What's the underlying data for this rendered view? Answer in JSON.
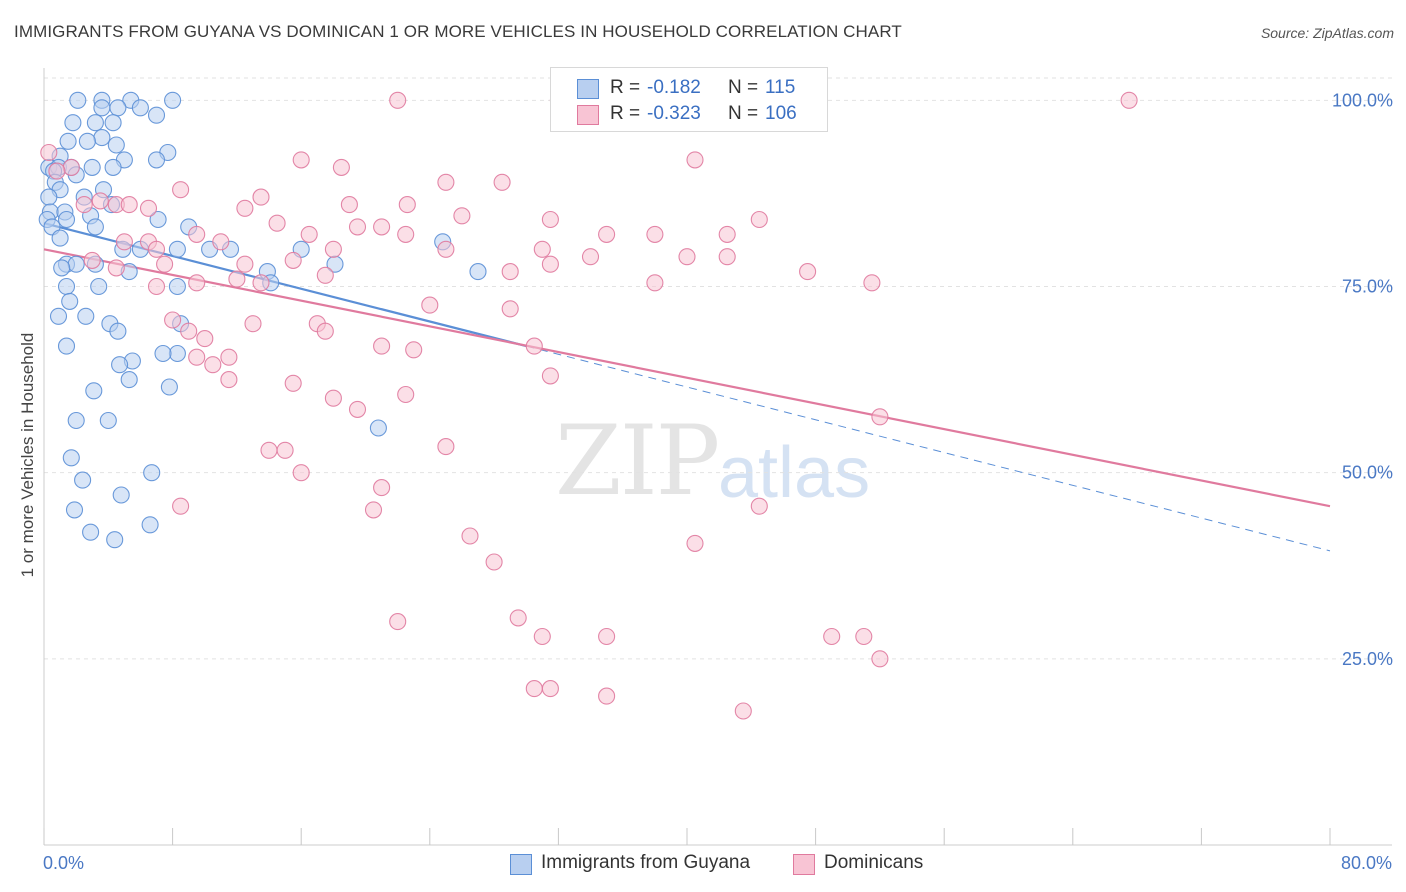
{
  "title": "IMMIGRANTS FROM GUYANA VS DOMINICAN 1 OR MORE VEHICLES IN HOUSEHOLD CORRELATION CHART",
  "source": "Source: ZipAtlas.com",
  "watermark_zip": "ZIP",
  "watermark_atlas": "atlas",
  "legend": {
    "r_label": "R =",
    "n_label": "N =",
    "rows": [
      {
        "r": "-0.182",
        "n": "115",
        "fill": "#b8cff0",
        "stroke": "#5b8fd6"
      },
      {
        "r": "-0.323",
        "n": "106",
        "fill": "#f8c4d4",
        "stroke": "#e07a9e"
      }
    ]
  },
  "chart_data": {
    "type": "scatter",
    "title": "IMMIGRANTS FROM GUYANA VS DOMINICAN 1 OR MORE VEHICLES IN HOUSEHOLD CORRELATION CHART",
    "xlabel": "",
    "ylabel": "1 or more Vehicles in Household",
    "xlim": [
      0,
      80
    ],
    "ylim": [
      0,
      103
    ],
    "x_tick_labels": [
      "0.0%",
      "80.0%"
    ],
    "y_ticks": [
      25,
      50,
      75,
      100
    ],
    "y_tick_labels": [
      "25.0%",
      "50.0%",
      "75.0%",
      "100.0%"
    ],
    "grid": "horizontal dashed",
    "series": [
      {
        "name": "Immigrants from Guyana",
        "color": "#5b8fd6",
        "fill": "#b8cff0",
        "trend": {
          "x": [
            0,
            30
          ],
          "y": [
            83.5,
            67.0
          ]
        },
        "trend_extended": {
          "x": [
            30,
            80
          ],
          "y": [
            67.0,
            39.5
          ]
        },
        "points": [
          [
            2.1,
            100
          ],
          [
            3.6,
            100
          ],
          [
            5.4,
            100
          ],
          [
            8.0,
            100
          ],
          [
            3.6,
            99
          ],
          [
            4.6,
            99
          ],
          [
            6.0,
            99
          ],
          [
            7.0,
            98
          ],
          [
            1.8,
            97
          ],
          [
            3.2,
            97
          ],
          [
            4.3,
            97
          ],
          [
            3.6,
            95
          ],
          [
            1.5,
            94.5
          ],
          [
            2.7,
            94.5
          ],
          [
            4.5,
            94
          ],
          [
            7.7,
            93
          ],
          [
            1.0,
            92.5
          ],
          [
            5.0,
            92
          ],
          [
            7.0,
            92
          ],
          [
            0.3,
            91
          ],
          [
            0.9,
            91
          ],
          [
            1.7,
            91
          ],
          [
            3.0,
            91
          ],
          [
            4.3,
            91
          ],
          [
            0.6,
            90.5
          ],
          [
            2.0,
            90
          ],
          [
            0.7,
            89
          ],
          [
            3.7,
            88
          ],
          [
            1.0,
            88
          ],
          [
            0.3,
            87
          ],
          [
            2.5,
            87
          ],
          [
            4.2,
            86
          ],
          [
            0.4,
            85
          ],
          [
            1.3,
            85
          ],
          [
            0.2,
            84
          ],
          [
            2.9,
            84.5
          ],
          [
            1.4,
            84
          ],
          [
            7.1,
            84
          ],
          [
            0.5,
            83
          ],
          [
            3.2,
            83
          ],
          [
            9.0,
            83
          ],
          [
            1.0,
            81.5
          ],
          [
            4.9,
            80
          ],
          [
            6.0,
            80
          ],
          [
            8.3,
            80
          ],
          [
            10.3,
            80
          ],
          [
            16.0,
            80
          ],
          [
            18.1,
            78
          ],
          [
            1.4,
            78
          ],
          [
            2.0,
            78
          ],
          [
            1.1,
            77.5
          ],
          [
            3.2,
            78
          ],
          [
            5.3,
            77
          ],
          [
            13.9,
            77
          ],
          [
            27.0,
            77
          ],
          [
            1.4,
            75
          ],
          [
            3.4,
            75
          ],
          [
            8.3,
            75
          ],
          [
            14.1,
            75.5
          ],
          [
            1.6,
            73
          ],
          [
            2.6,
            71
          ],
          [
            0.9,
            71
          ],
          [
            4.1,
            70
          ],
          [
            8.5,
            70
          ],
          [
            4.6,
            69
          ],
          [
            1.4,
            67
          ],
          [
            8.3,
            66
          ],
          [
            7.4,
            66
          ],
          [
            5.5,
            65
          ],
          [
            4.7,
            64.5
          ],
          [
            5.3,
            62.5
          ],
          [
            3.1,
            61
          ],
          [
            7.8,
            61.5
          ],
          [
            2.0,
            57
          ],
          [
            4.0,
            57
          ],
          [
            20.8,
            56
          ],
          [
            1.7,
            52
          ],
          [
            2.4,
            49
          ],
          [
            6.7,
            50
          ],
          [
            4.8,
            47
          ],
          [
            1.9,
            45
          ],
          [
            6.6,
            43
          ],
          [
            2.9,
            42
          ],
          [
            4.4,
            41
          ],
          [
            24.8,
            81
          ],
          [
            11.6,
            80
          ]
        ]
      },
      {
        "name": "Dominicans",
        "color": "#e07a9e",
        "fill": "#f8c4d4",
        "trend": {
          "x": [
            0,
            80
          ],
          "y": [
            80.0,
            45.5
          ]
        },
        "points": [
          [
            22.0,
            100
          ],
          [
            32.0,
            100
          ],
          [
            67.5,
            100
          ],
          [
            0.3,
            93
          ],
          [
            1.7,
            91
          ],
          [
            0.8,
            90.5
          ],
          [
            16.0,
            92
          ],
          [
            18.5,
            91
          ],
          [
            25.0,
            89
          ],
          [
            28.5,
            89
          ],
          [
            40.5,
            92
          ],
          [
            8.5,
            88
          ],
          [
            13.5,
            87
          ],
          [
            12.5,
            85.5
          ],
          [
            19.0,
            86
          ],
          [
            22.6,
            86
          ],
          [
            2.5,
            86
          ],
          [
            3.5,
            86.5
          ],
          [
            4.5,
            86
          ],
          [
            5.3,
            86
          ],
          [
            6.5,
            85.5
          ],
          [
            14.5,
            83.5
          ],
          [
            19.5,
            83
          ],
          [
            21.0,
            83
          ],
          [
            22.5,
            82
          ],
          [
            26.0,
            84.5
          ],
          [
            31.5,
            84
          ],
          [
            35.0,
            82
          ],
          [
            38.0,
            82
          ],
          [
            42.5,
            82
          ],
          [
            44.5,
            84
          ],
          [
            5.0,
            81
          ],
          [
            6.5,
            81
          ],
          [
            7.0,
            80
          ],
          [
            9.5,
            82
          ],
          [
            11.0,
            81
          ],
          [
            16.5,
            82
          ],
          [
            18.0,
            80
          ],
          [
            25.0,
            80
          ],
          [
            31.0,
            80
          ],
          [
            34.0,
            79
          ],
          [
            40.0,
            79
          ],
          [
            42.5,
            79
          ],
          [
            3.0,
            78.5
          ],
          [
            4.5,
            77.5
          ],
          [
            7.5,
            78
          ],
          [
            12.5,
            78
          ],
          [
            15.5,
            78.5
          ],
          [
            17.5,
            76.5
          ],
          [
            29.0,
            77
          ],
          [
            31.5,
            78
          ],
          [
            47.5,
            77
          ],
          [
            51.5,
            75.5
          ],
          [
            7.0,
            75
          ],
          [
            9.5,
            75.5
          ],
          [
            12.0,
            76
          ],
          [
            13.5,
            75.5
          ],
          [
            38.0,
            75.5
          ],
          [
            24.0,
            72.5
          ],
          [
            29.0,
            72
          ],
          [
            8.0,
            70.5
          ],
          [
            9.0,
            69
          ],
          [
            13.0,
            70
          ],
          [
            17.0,
            70
          ],
          [
            17.5,
            69
          ],
          [
            10.0,
            68
          ],
          [
            21.0,
            67
          ],
          [
            23.0,
            66.5
          ],
          [
            30.5,
            67
          ],
          [
            9.5,
            65.5
          ],
          [
            11.5,
            65.5
          ],
          [
            10.5,
            64.5
          ],
          [
            31.5,
            63
          ],
          [
            11.5,
            62.5
          ],
          [
            15.5,
            62
          ],
          [
            22.5,
            60.5
          ],
          [
            18.0,
            60
          ],
          [
            19.5,
            58.5
          ],
          [
            52.0,
            57.5
          ],
          [
            14.0,
            53
          ],
          [
            15.0,
            53
          ],
          [
            25.0,
            53.5
          ],
          [
            16.0,
            50
          ],
          [
            21.0,
            48
          ],
          [
            8.5,
            45.5
          ],
          [
            20.5,
            45
          ],
          [
            44.5,
            45.5
          ],
          [
            26.5,
            41.5
          ],
          [
            40.5,
            40.5
          ],
          [
            28.0,
            38
          ],
          [
            22.0,
            30
          ],
          [
            29.5,
            30.5
          ],
          [
            31.0,
            28
          ],
          [
            35.0,
            28
          ],
          [
            49.0,
            28
          ],
          [
            51.0,
            28
          ],
          [
            52.0,
            25
          ],
          [
            30.5,
            21
          ],
          [
            35.0,
            20
          ],
          [
            43.5,
            18
          ],
          [
            31.5,
            21
          ]
        ]
      }
    ]
  }
}
